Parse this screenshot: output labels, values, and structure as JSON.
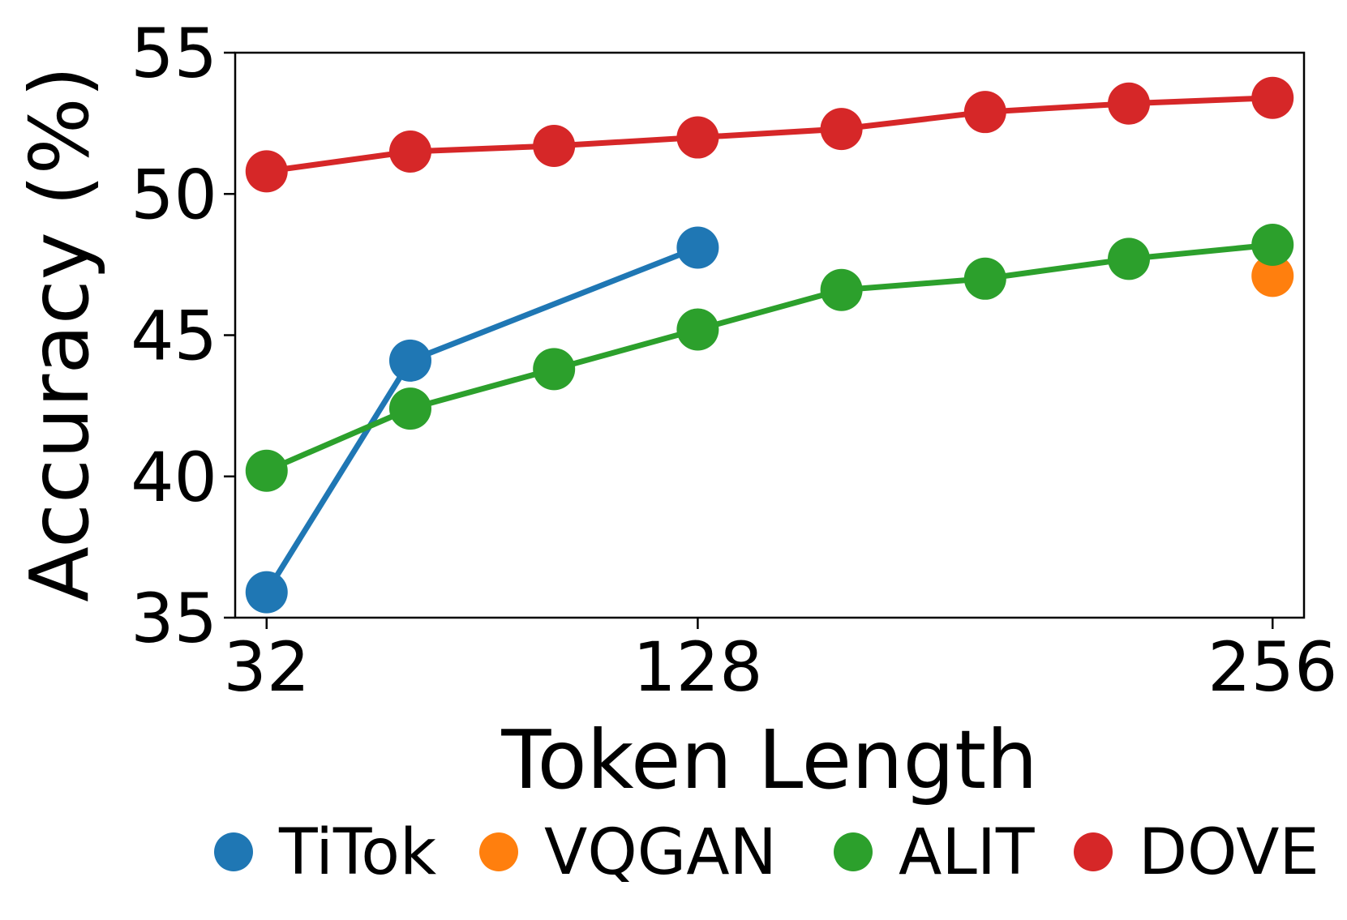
{
  "chart_data": {
    "type": "line",
    "xlabel": "Token Length",
    "ylabel": "Accuracy (%)",
    "x": [
      32,
      48,
      64,
      80,
      96,
      112,
      128,
      144,
      160,
      176,
      192,
      208,
      224,
      240,
      256
    ],
    "xticks": [
      32,
      128,
      256
    ],
    "yticks": [
      35,
      40,
      45,
      50,
      55
    ],
    "ylim": [
      35,
      55
    ],
    "xlim": [
      25,
      263
    ],
    "grid": false,
    "legend_position": "bottom",
    "series": [
      {
        "name": "TiTok",
        "color": "#1f77b4",
        "points": [
          [
            32,
            35.9
          ],
          [
            64,
            44.1
          ],
          [
            128,
            48.1
          ]
        ]
      },
      {
        "name": "VQGAN",
        "color": "#ff7f0e",
        "points": [
          [
            256,
            47.1
          ]
        ]
      },
      {
        "name": "ALIT",
        "color": "#2ca02c",
        "points": [
          [
            32,
            40.2
          ],
          [
            64,
            42.4
          ],
          [
            96,
            43.8
          ],
          [
            128,
            45.2
          ],
          [
            160,
            46.6
          ],
          [
            192,
            47.0
          ],
          [
            224,
            47.7
          ],
          [
            256,
            48.2
          ]
        ]
      },
      {
        "name": "DOVE",
        "color": "#d62728",
        "points": [
          [
            32,
            50.8
          ],
          [
            64,
            51.5
          ],
          [
            96,
            51.7
          ],
          [
            128,
            52.0
          ],
          [
            160,
            52.3
          ],
          [
            192,
            52.9
          ],
          [
            224,
            53.2
          ],
          [
            256,
            53.4
          ]
        ]
      }
    ]
  }
}
